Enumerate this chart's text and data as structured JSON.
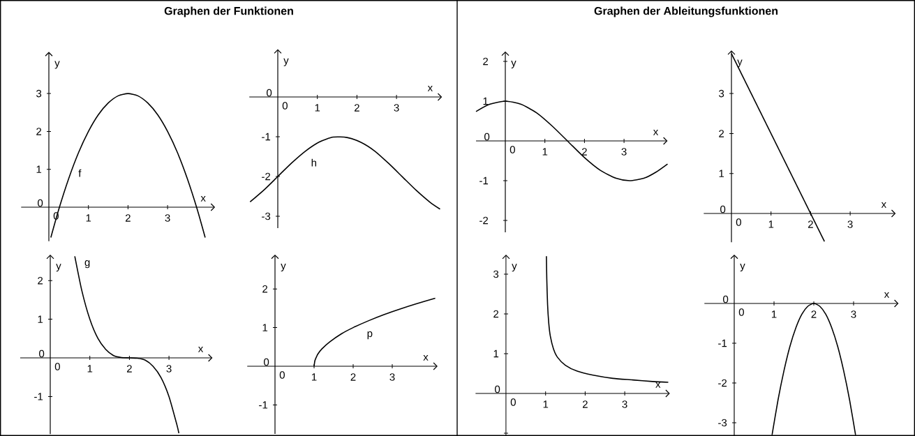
{
  "chart_data": [
    {
      "type": "line",
      "title": "Graphen der Funktionen",
      "xlabel": "x",
      "ylabel": "y",
      "xlim": [
        -0.7,
        4.2
      ],
      "ylim": [
        -0.9,
        4.1
      ],
      "xticks": [
        0,
        1,
        2,
        3
      ],
      "yticks": [
        0,
        1,
        2,
        3
      ],
      "grid": false,
      "legend": false,
      "marker": "none",
      "line_style": "solid",
      "series": [
        {
          "name": "f",
          "color": "#000000",
          "x": [
            0.05,
            0.25,
            0.5,
            0.75,
            1,
            1.25,
            1.5,
            1.75,
            2,
            2.25,
            2.5,
            2.75,
            3,
            3.25,
            3.5,
            3.75,
            3.95
          ],
          "values": [
            -0.8,
            -0.06,
            0.75,
            1.44,
            2,
            2.44,
            2.75,
            2.94,
            3,
            2.94,
            2.75,
            2.44,
            2,
            1.44,
            0.75,
            -0.06,
            -0.8
          ]
        }
      ]
    },
    {
      "type": "line",
      "xlabel": "x",
      "ylabel": "y",
      "xlim": [
        -0.72,
        4.15
      ],
      "ylim": [
        -3.3,
        1.2
      ],
      "xticks": [
        0,
        1,
        2,
        3
      ],
      "yticks": [
        -3,
        -2,
        -1,
        0
      ],
      "grid": false,
      "legend": false,
      "marker": "none",
      "line_style": "solid",
      "series": [
        {
          "name": "h",
          "color": "#000000",
          "x": [
            -0.7,
            -0.35,
            0,
            0.35,
            0.7,
            1.05,
            1.4,
            1.75,
            2.1,
            2.45,
            2.8,
            3.15,
            3.5,
            3.85,
            4.1
          ],
          "values": [
            -2.64,
            -2.34,
            -2,
            -1.66,
            -1.36,
            -1.13,
            -1.01,
            -1.02,
            -1.14,
            -1.36,
            -1.67,
            -2.01,
            -2.35,
            -2.65,
            -2.82
          ]
        }
      ]
    },
    {
      "type": "line",
      "title": "Graphen der Ableitungsfunktionen",
      "xlabel": "x",
      "ylabel": "y",
      "xlim": [
        -0.74,
        4.1
      ],
      "ylim": [
        -2.3,
        2.25
      ],
      "xticks": [
        0,
        1,
        2,
        3
      ],
      "yticks": [
        -2,
        -1,
        0,
        1,
        2
      ],
      "grid": false,
      "legend": false,
      "marker": "none",
      "line_style": "solid",
      "series": [
        {
          "color": "#000000",
          "x": [
            -0.74,
            -0.4,
            0,
            0.4,
            0.8,
            1.2,
            1.6,
            2,
            2.4,
            2.8,
            3.14,
            3.5,
            3.8,
            4.1
          ],
          "values": [
            0.74,
            0.92,
            1,
            0.92,
            0.7,
            0.36,
            -0.03,
            -0.42,
            -0.74,
            -0.94,
            -1,
            -0.94,
            -0.79,
            -0.58
          ]
        }
      ]
    },
    {
      "type": "line",
      "xlabel": "x",
      "ylabel": "y",
      "xlim": [
        -0.7,
        4.15
      ],
      "ylim": [
        -0.72,
        4.08
      ],
      "xticks": [
        0,
        1,
        2,
        3
      ],
      "yticks": [
        0,
        1,
        2,
        3
      ],
      "grid": false,
      "legend": false,
      "line_style": "solid",
      "series": [
        {
          "color": "#000000",
          "x": [
            0,
            2.35
          ],
          "values": [
            4,
            -0.7
          ]
        }
      ]
    },
    {
      "type": "line",
      "xlabel": "x",
      "ylabel": "y",
      "xlim": [
        -0.76,
        4.1
      ],
      "ylim": [
        -1.97,
        2.67
      ],
      "xticks": [
        0,
        1,
        2,
        3
      ],
      "yticks": [
        -1,
        0,
        1,
        2
      ],
      "grid": false,
      "legend": false,
      "marker": "none",
      "line_style": "solid",
      "series": [
        {
          "name": "g",
          "color": "#000000",
          "x": [
            0.62,
            0.8,
            1,
            1.2,
            1.4,
            1.6,
            1.8,
            2,
            2.2,
            2.4,
            2.6,
            2.8,
            3,
            3.2,
            3.25
          ],
          "values": [
            2.63,
            1.73,
            1,
            0.51,
            0.22,
            0.06,
            0.01,
            0,
            -0.01,
            -0.06,
            -0.22,
            -0.51,
            -1,
            -1.73,
            -1.95
          ]
        }
      ]
    },
    {
      "type": "line",
      "xlabel": "x",
      "ylabel": "y",
      "xlim": [
        -0.71,
        4.16
      ],
      "ylim": [
        -1.75,
        2.89
      ],
      "xticks": [
        0,
        1,
        2,
        3
      ],
      "yticks": [
        -1,
        0,
        1,
        2
      ],
      "grid": false,
      "legend": false,
      "marker": "none",
      "line_style": "solid",
      "series": [
        {
          "name": "p",
          "color": "#000000",
          "x": [
            1,
            1.02,
            1.05,
            1.1,
            1.2,
            1.4,
            1.7,
            2,
            2.4,
            2.8,
            3.2,
            3.6,
            4.1
          ],
          "values": [
            0,
            0.14,
            0.22,
            0.32,
            0.45,
            0.63,
            0.84,
            1,
            1.18,
            1.34,
            1.48,
            1.61,
            1.76
          ]
        }
      ]
    },
    {
      "type": "line",
      "xlabel": "x",
      "ylabel": "y",
      "xlim": [
        -0.77,
        4.14
      ],
      "ylim": [
        -1.07,
        3.49
      ],
      "xticks": [
        0,
        1,
        2,
        3
      ],
      "yticks": [
        {
          "value": -1,
          "label": null
        },
        0,
        1,
        2,
        3
      ],
      "grid": false,
      "legend": false,
      "marker": "none",
      "line_style": "solid",
      "series": [
        {
          "color": "#000000",
          "x": [
            1.021,
            1.03,
            1.05,
            1.08,
            1.12,
            1.2,
            1.3,
            1.5,
            1.8,
            2.2,
            2.7,
            3.2,
            3.7,
            4.1
          ],
          "values": [
            3.45,
            2.89,
            2.24,
            1.77,
            1.44,
            1.12,
            0.91,
            0.71,
            0.56,
            0.46,
            0.38,
            0.34,
            0.3,
            0.28
          ]
        }
      ]
    },
    {
      "type": "line",
      "xlabel": "x",
      "ylabel": "y",
      "xlim": [
        -0.75,
        4.13
      ],
      "ylim": [
        -3.33,
        1.23
      ],
      "xticks": [
        0,
        1,
        2,
        3
      ],
      "yticks": [
        -3,
        -2,
        -1,
        0
      ],
      "grid": false,
      "legend": false,
      "marker": "none",
      "line_style": "solid",
      "series": [
        {
          "color": "#000000",
          "x": [
            0.95,
            1.1,
            1.25,
            1.4,
            1.55,
            1.7,
            1.85,
            2,
            2.15,
            2.3,
            2.45,
            2.6,
            2.75,
            2.9,
            3.05
          ],
          "values": [
            -3.31,
            -2.43,
            -1.69,
            -1.08,
            -0.61,
            -0.27,
            -0.07,
            0,
            -0.07,
            -0.27,
            -0.61,
            -1.08,
            -1.69,
            -2.43,
            -3.31
          ]
        }
      ]
    }
  ]
}
